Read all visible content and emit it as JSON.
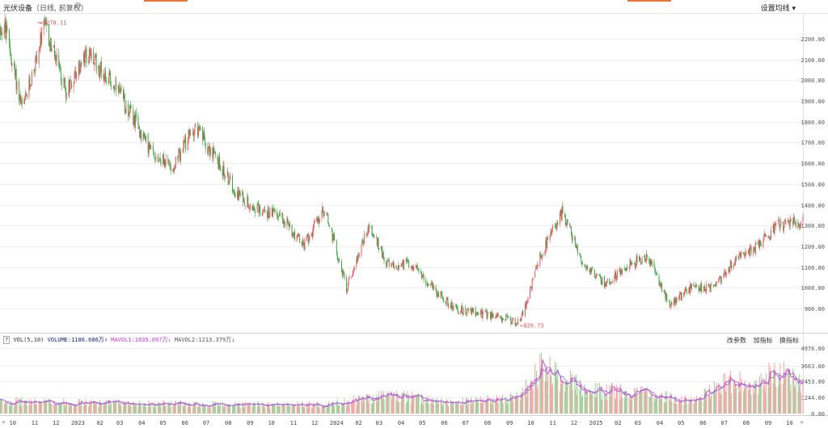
{
  "header": {
    "title": "光伏设备",
    "subtitle": "（日线, 前复权）",
    "settings_label": "设置均线",
    "settings_icon": "chevron-down-icon",
    "gear_icon": "gear-icon"
  },
  "volume_panel": {
    "indicator": "VOL(5,10)",
    "volume_label": "VOLUME:1186.686万",
    "mavol1_label": "MAVOL1:1035.097万",
    "mavol2_label": "MAVOL2:1213.379万",
    "tools": [
      "改参数",
      "加指标",
      "换指标"
    ]
  },
  "nav": {
    "left": "«",
    "right": "»"
  },
  "colors": {
    "up": "#e9545f",
    "down": "#3aa241",
    "up_vol": "#f4a6a6",
    "down_vol": "#9fd09a",
    "mavol1": "#c23ad6",
    "mavol2": "#9b6bd6",
    "grid": "#eeeeee",
    "accent": "#e8743b"
  },
  "chart_data": [
    {
      "type": "candlestick",
      "title": "光伏设备（日线, 前复权）",
      "y_ticks": [
        "2200.00",
        "2100.00",
        "2000.00",
        "1900.00",
        "1800.00",
        "1700.00",
        "1600.00",
        "1500.00",
        "1400.00",
        "1300.00",
        "1200.00",
        "1100.00",
        "1000.00",
        "900.00"
      ],
      "ylim": [
        800,
        2300
      ],
      "x_ticks": [
        "10",
        "11",
        "12",
        "2023",
        "02",
        "03",
        "04",
        "05",
        "06",
        "07",
        "08",
        "09",
        "10",
        "11",
        "12",
        "2024",
        "02",
        "03",
        "04",
        "05",
        "06",
        "07",
        "08",
        "09",
        "10",
        "11",
        "12",
        "2025",
        "02",
        "03",
        "04",
        "05",
        "06",
        "07",
        "08",
        "09",
        "10"
      ],
      "high_annotation": {
        "value": "2278.11",
        "x": "2022-11"
      },
      "low_annotation": {
        "value": "820.73",
        "x": "2024-09"
      },
      "trend_keypoints": [
        {
          "x": "2022-09-20",
          "y": 2250
        },
        {
          "x": "2022-10",
          "y": 1850
        },
        {
          "x": "2022-11",
          "y": 2260
        },
        {
          "x": "2022-12",
          "y": 1950
        },
        {
          "x": "2023-01",
          "y": 2130
        },
        {
          "x": "2023-02",
          "y": 2000
        },
        {
          "x": "2023-03",
          "y": 1850
        },
        {
          "x": "2023-04",
          "y": 1650
        },
        {
          "x": "2023-05",
          "y": 1580
        },
        {
          "x": "2023-06",
          "y": 1780
        },
        {
          "x": "2023-07",
          "y": 1620
        },
        {
          "x": "2023-08",
          "y": 1450
        },
        {
          "x": "2023-09",
          "y": 1370
        },
        {
          "x": "2023-10",
          "y": 1350
        },
        {
          "x": "2023-11",
          "y": 1200
        },
        {
          "x": "2023-12",
          "y": 1380
        },
        {
          "x": "2024-01",
          "y": 1000
        },
        {
          "x": "2024-02",
          "y": 1300
        },
        {
          "x": "2024-03",
          "y": 1100
        },
        {
          "x": "2024-04",
          "y": 1120
        },
        {
          "x": "2024-05",
          "y": 1000
        },
        {
          "x": "2024-06",
          "y": 900
        },
        {
          "x": "2024-07",
          "y": 880
        },
        {
          "x": "2024-08",
          "y": 860
        },
        {
          "x": "2024-09",
          "y": 830
        },
        {
          "x": "2024-10",
          "y": 1150
        },
        {
          "x": "2024-11",
          "y": 1370
        },
        {
          "x": "2024-12",
          "y": 1100
        },
        {
          "x": "2025-01",
          "y": 1020
        },
        {
          "x": "2025-02",
          "y": 1110
        },
        {
          "x": "2025-03",
          "y": 1150
        },
        {
          "x": "2025-04",
          "y": 920
        },
        {
          "x": "2025-05",
          "y": 1000
        },
        {
          "x": "2025-06",
          "y": 1000
        },
        {
          "x": "2025-07",
          "y": 1130
        },
        {
          "x": "2025-08",
          "y": 1200
        },
        {
          "x": "2025-09",
          "y": 1300
        },
        {
          "x": "2025-10",
          "y": 1320
        }
      ]
    },
    {
      "type": "bar",
      "title": "VOL(5,10)",
      "y_ticks": [
        "4976.00",
        "3663.00",
        "2453.00",
        "1244.00",
        "0.00"
      ],
      "ylim": [
        0,
        5300
      ],
      "series": [
        {
          "name": "VOLUME",
          "latest": "1186.686万"
        },
        {
          "name": "MAVOL1",
          "latest": "1035.097万"
        },
        {
          "name": "MAVOL2",
          "latest": "1213.379万"
        }
      ],
      "volume_keypoints": [
        {
          "x": "2022-09",
          "y": 900
        },
        {
          "x": "2023-06",
          "y": 700
        },
        {
          "x": "2023-12",
          "y": 650
        },
        {
          "x": "2024-03",
          "y": 1400
        },
        {
          "x": "2024-06",
          "y": 800
        },
        {
          "x": "2024-09",
          "y": 1200
        },
        {
          "x": "2024-10",
          "y": 3400
        },
        {
          "x": "2024-11",
          "y": 2700
        },
        {
          "x": "2024-12",
          "y": 1800
        },
        {
          "x": "2025-03",
          "y": 1500
        },
        {
          "x": "2025-05",
          "y": 900
        },
        {
          "x": "2025-07",
          "y": 2600
        },
        {
          "x": "2025-08",
          "y": 1900
        },
        {
          "x": "2025-09",
          "y": 3400
        },
        {
          "x": "2025-10",
          "y": 2200
        }
      ]
    }
  ]
}
